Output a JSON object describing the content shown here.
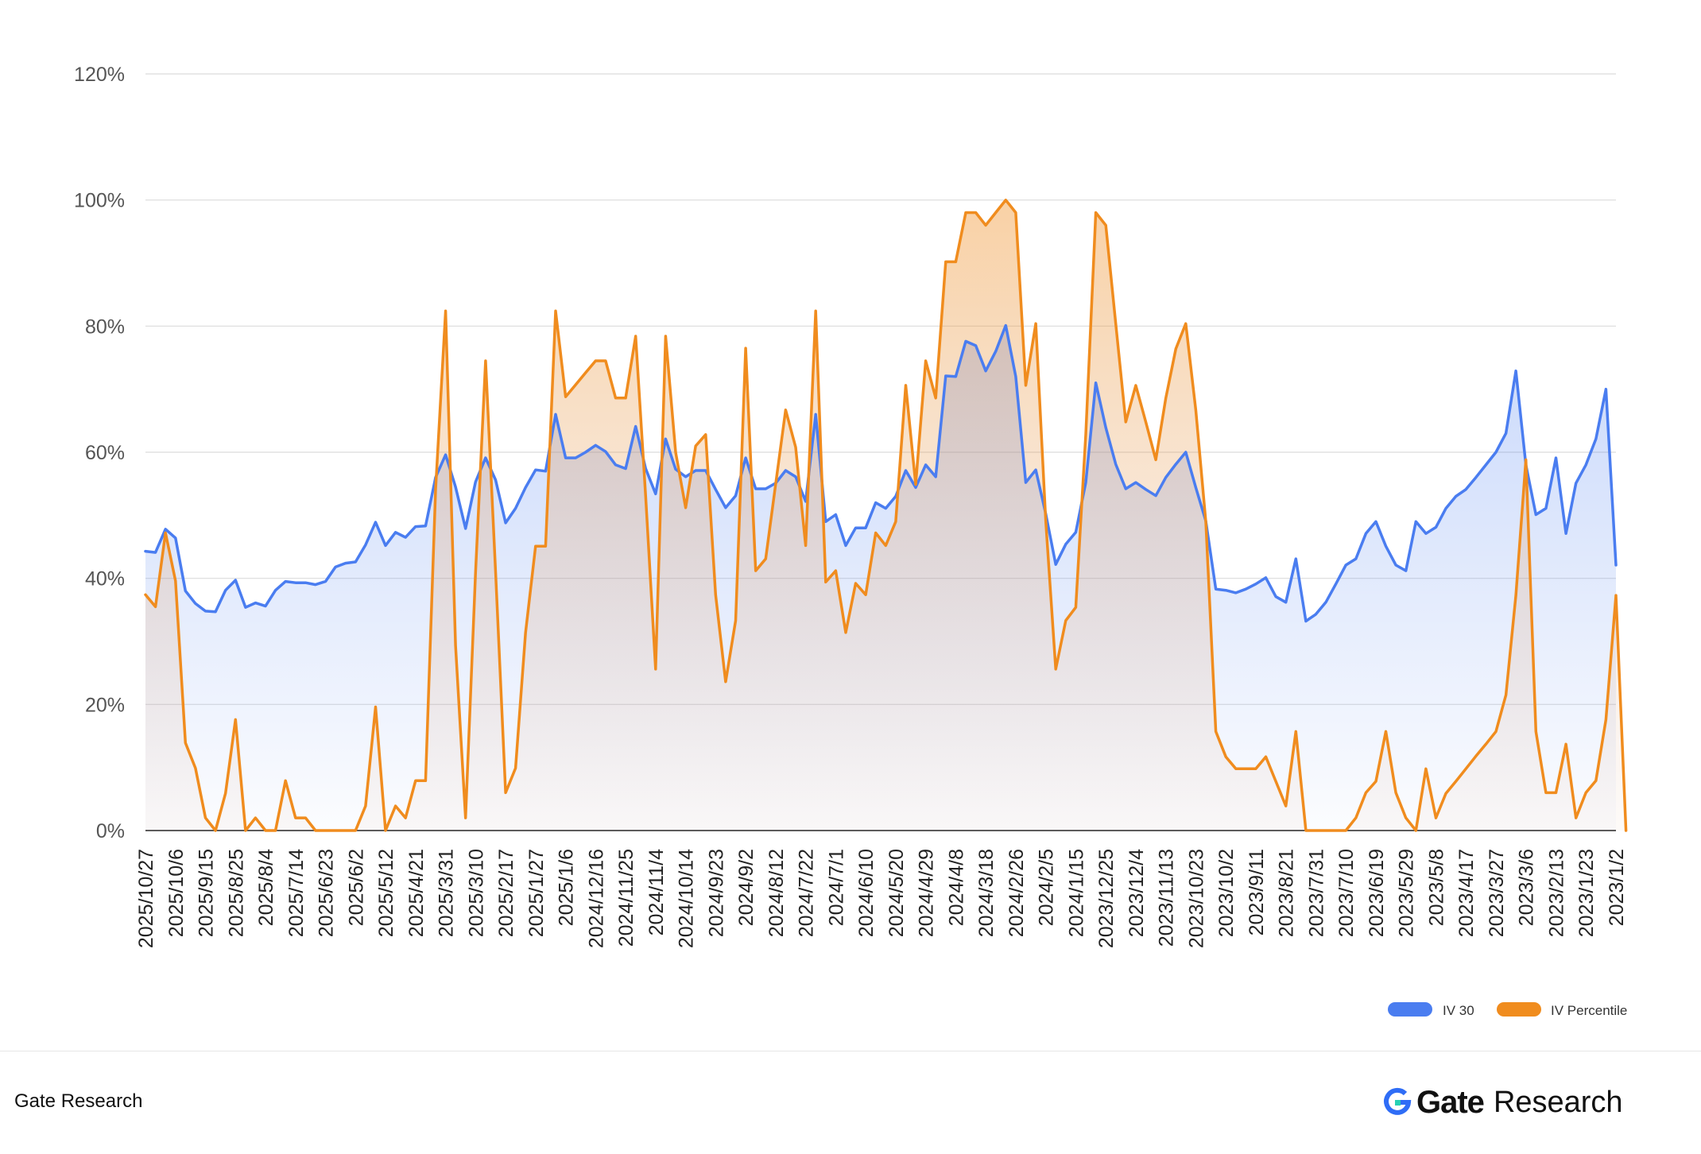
{
  "chart_data": {
    "type": "area",
    "title": "",
    "xlabel": "",
    "ylabel": "",
    "ylim": [
      0,
      120
    ],
    "y_ticks": [
      "0%",
      "20%",
      "40%",
      "60%",
      "80%",
      "100%",
      "120%"
    ],
    "x_tick_labels": [
      "2025/10/27",
      "2025/10/6",
      "2025/9/15",
      "2025/8/25",
      "2025/8/4",
      "2025/7/14",
      "2025/6/23",
      "2025/6/2",
      "2025/5/12",
      "2025/4/21",
      "2025/3/31",
      "2025/3/10",
      "2025/2/17",
      "2025/1/27",
      "2025/1/6",
      "2024/12/16",
      "2024/11/25",
      "2024/11/4",
      "2024/10/14",
      "2024/9/23",
      "2024/9/2",
      "2024/8/12",
      "2024/7/22",
      "2024/7/1",
      "2024/6/10",
      "2024/5/20",
      "2024/4/29",
      "2024/4/8",
      "2024/3/18",
      "2024/2/26",
      "2024/2/5",
      "2024/1/15",
      "2023/12/25",
      "2023/12/4",
      "2023/11/13",
      "2023/10/23",
      "2023/10/2",
      "2023/9/11",
      "2023/8/21",
      "2023/7/31",
      "2023/7/10",
      "2023/6/19",
      "2023/5/29",
      "2023/5/8",
      "2023/4/17",
      "2023/3/27",
      "2023/3/6",
      "2023/2/13",
      "2023/1/23",
      "2023/1/2"
    ],
    "grid": true,
    "legend_position": "bottom-right",
    "series": [
      {
        "name": "IV 30",
        "color": "#4a7df0",
        "values": [
          44.3,
          44.1,
          47.8,
          46.4,
          38.0,
          36.0,
          34.8,
          34.7,
          38.1,
          39.7,
          35.4,
          36.1,
          35.6,
          38.1,
          39.5,
          39.3,
          39.3,
          39.0,
          39.5,
          41.8,
          42.4,
          42.6,
          45.3,
          48.9,
          45.2,
          47.3,
          46.5,
          48.2,
          48.3,
          56.0,
          59.6,
          54.5,
          47.9,
          55.3,
          59.1,
          55.6,
          48.8,
          51.1,
          54.4,
          57.2,
          57.0,
          66.0,
          59.1,
          59.1,
          60.0,
          61.1,
          60.1,
          58.0,
          57.4,
          64.1,
          57.4,
          53.4,
          62.1,
          57.3,
          56.1,
          57.1,
          57.1,
          54.1,
          51.2,
          53.1,
          59.1,
          54.2,
          54.2,
          55.1,
          57.1,
          56.1,
          52.2,
          66.0,
          49.0,
          50.1,
          45.2,
          48.0,
          48.0,
          52.0,
          51.1,
          53.0,
          57.1,
          54.4,
          58.0,
          56.1,
          72.1,
          72.0,
          77.6,
          76.9,
          72.9,
          76.0,
          80.1,
          72.0,
          55.2,
          57.2,
          50.2,
          42.2,
          45.4,
          47.3,
          55.2,
          71.0,
          63.9,
          58.1,
          54.2,
          55.2,
          54.1,
          53.1,
          56.0,
          58.1,
          60.0,
          54.4,
          49.1,
          38.3,
          38.1,
          37.7,
          38.3,
          39.1,
          40.1,
          37.1,
          36.2,
          43.1,
          33.2,
          34.3,
          36.2,
          39.1,
          42.1,
          43.1,
          47.1,
          49.0,
          45.1,
          42.1,
          41.2,
          49.0,
          47.1,
          48.1,
          51.1,
          53.0,
          54.1,
          56.0,
          58.0,
          60.0,
          63.0,
          72.9,
          58.0,
          50.1,
          51.1,
          59.1,
          47.1,
          55.1,
          58.0,
          62.1,
          70.0,
          42.1
        ]
      },
      {
        "name": "IV Percentile",
        "color": "#f08c1e",
        "values": [
          37.4,
          35.5,
          47.2,
          39.6,
          13.9,
          9.9,
          2.0,
          0.0,
          5.9,
          17.6,
          0.0,
          2.0,
          0.0,
          0.0,
          7.9,
          2.0,
          2.0,
          0.0,
          0.0,
          0.0,
          0.0,
          0.0,
          3.9,
          19.6,
          0.0,
          3.9,
          2.0,
          7.9,
          7.9,
          54.1,
          82.4,
          29.4,
          2.0,
          41.0,
          74.5,
          41.0,
          6.0,
          9.9,
          31.4,
          45.1,
          45.1,
          82.4,
          68.8,
          70.7,
          72.6,
          74.5,
          74.5,
          68.6,
          68.6,
          78.4,
          53.0,
          25.6,
          78.4,
          60.0,
          51.2,
          61.0,
          62.8,
          37.4,
          23.6,
          33.3,
          76.5,
          41.2,
          43.1,
          55.0,
          66.7,
          60.8,
          45.2,
          82.4,
          39.4,
          41.2,
          31.4,
          39.2,
          37.4,
          47.2,
          45.2,
          49.0,
          70.6,
          54.9,
          74.5,
          68.6,
          90.2,
          90.2,
          98.0,
          98.0,
          96.0,
          98.0,
          100.0,
          98.0,
          70.6,
          80.4,
          49.0,
          25.6,
          33.3,
          35.4,
          62.8,
          98.0,
          96.0,
          80.4,
          64.8,
          70.6,
          64.8,
          58.8,
          68.6,
          76.4,
          80.4,
          66.7,
          49.0,
          15.7,
          11.7,
          9.8,
          9.8,
          9.8,
          11.7,
          7.8,
          3.9,
          15.7,
          0.0,
          0.0,
          0.0,
          0.0,
          0.0,
          2.0,
          6.0,
          7.8,
          15.7,
          6.0,
          2.0,
          0.0,
          9.8,
          2.0,
          5.9,
          7.8,
          9.8,
          11.8,
          13.7,
          15.7,
          21.5,
          37.3,
          58.8,
          15.7,
          6.0,
          6.0,
          13.7,
          2.0,
          6.0,
          7.9,
          17.6,
          37.3,
          0.0
        ]
      }
    ]
  },
  "legend": {
    "items": [
      {
        "label": "IV 30",
        "color": "#4a7df0"
      },
      {
        "label": "IV Percentile",
        "color": "#f08c1e"
      }
    ]
  },
  "footer": {
    "source": "Gate Research",
    "brand_gate": "Gate",
    "brand_research": "Research"
  }
}
